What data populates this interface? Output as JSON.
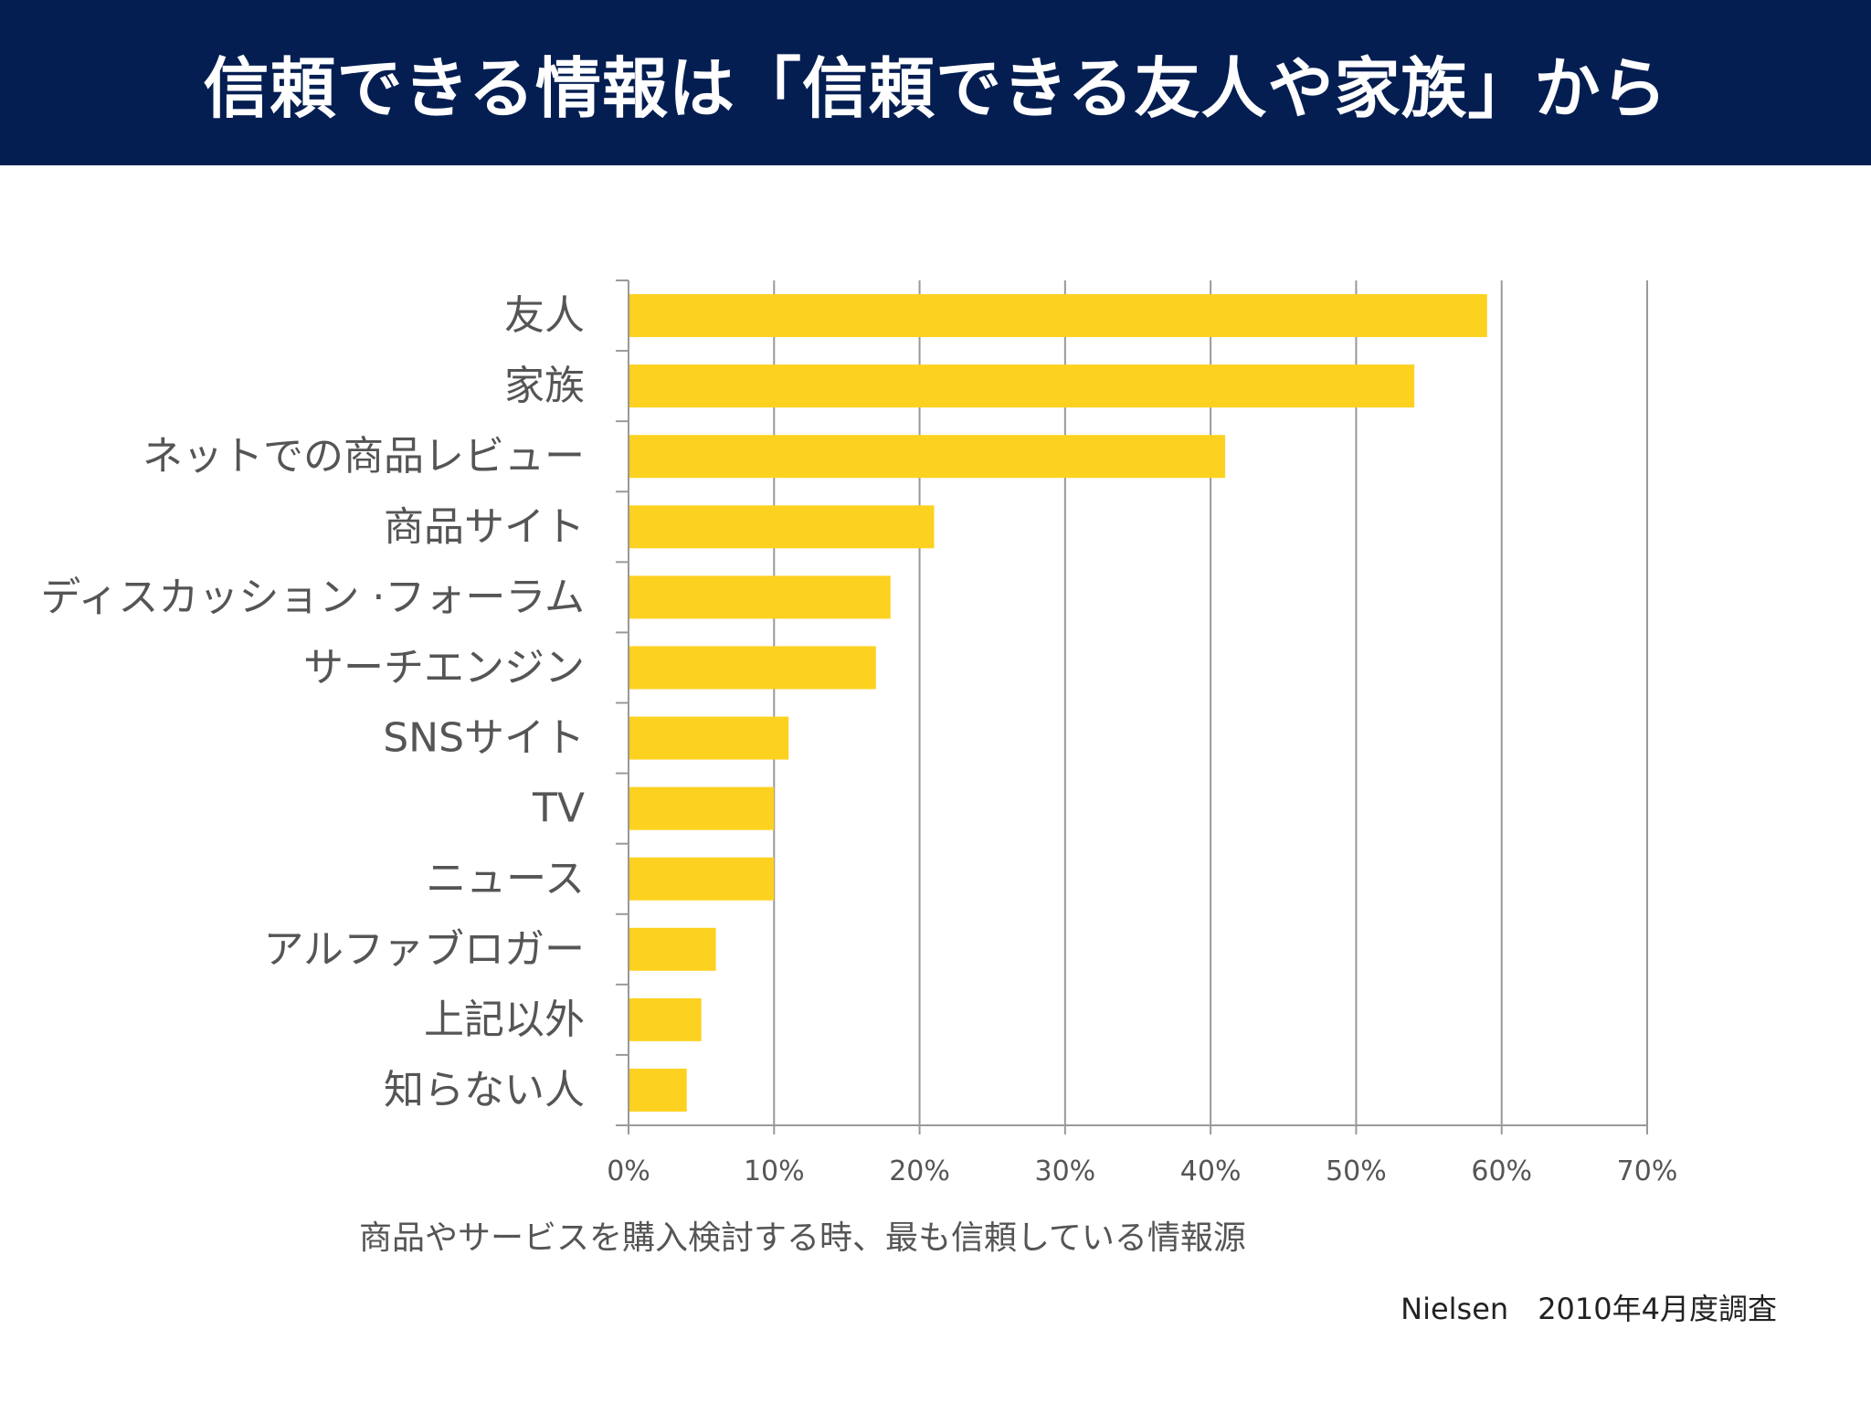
{
  "header": {
    "title": "信頼できる情報は「信頼できる友人や家族」から"
  },
  "colors": {
    "header_bg": "#041e52",
    "bar": "#fdd11f",
    "grid": "#999999",
    "axis": "#999999"
  },
  "chart_data": {
    "type": "bar",
    "orientation": "horizontal",
    "categories": [
      "友人",
      "家族",
      "ネットでの商品レビュー",
      "商品サイト",
      "ディスカッション ·フォーラム",
      "サーチエンジン",
      "SNSサイト",
      "TV",
      "ニュース",
      "アルファブロガー",
      "上記以外",
      "知らない人"
    ],
    "values": [
      59,
      54,
      41,
      21,
      18,
      17,
      11,
      10,
      10,
      6,
      5,
      4
    ],
    "xlim": [
      0,
      70
    ],
    "xticks": [
      0,
      10,
      20,
      30,
      40,
      50,
      60,
      70
    ],
    "xtick_labels": [
      "0%",
      "10%",
      "20%",
      "30%",
      "40%",
      "50%",
      "60%",
      "70%"
    ],
    "xlabel": "商品やサービスを購入検討する時、最も信頼している情報源",
    "grid": "vertical",
    "legend": "none"
  },
  "footer": {
    "source": "Nielsen　2010年4月度調査"
  }
}
